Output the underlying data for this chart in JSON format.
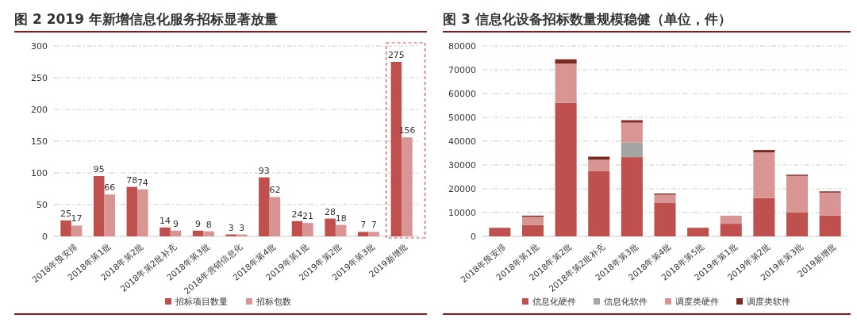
{
  "chart_data": [
    {
      "type": "bar",
      "title": "图 2 2019 年新增信息化服务招标显著放量",
      "categories": [
        "2018年预安排",
        "2018年第1批",
        "2018年第2批",
        "2018年第2批补充",
        "2018年第3批",
        "2018年营销信息化",
        "2018年第4批",
        "2019年第1批",
        "2019年第2批",
        "2019年第3批",
        "2019新增批"
      ],
      "series": [
        {
          "name": "招标项目数量",
          "color": "#c0504d",
          "values": [
            25,
            95,
            78,
            14,
            9,
            3,
            93,
            24,
            28,
            7,
            275
          ]
        },
        {
          "name": "招标包数",
          "color": "#d99594",
          "values": [
            17,
            66,
            74,
            9,
            8,
            3,
            62,
            21,
            18,
            7,
            156
          ]
        }
      ],
      "ylim": [
        0,
        300
      ],
      "yticks": [
        0,
        50,
        100,
        150,
        200,
        250,
        300
      ],
      "grid": "y",
      "legend": "bottom",
      "data_labels": true
    },
    {
      "type": "bar",
      "title": "图 3 信息化设备招标数量规模稳健（单位，件）",
      "stacked": true,
      "categories": [
        "2018年预安排",
        "2018年第1批",
        "2018年第2批",
        "2018年第2批补充",
        "2018年第3批",
        "2018年第4批",
        "2018年第5批",
        "2019年第1批",
        "2019年第2批",
        "2019年第3批",
        "2019新增批"
      ],
      "series": [
        {
          "name": "信息化硬件",
          "color": "#c0504d",
          "values": [
            3600,
            4700,
            56100,
            27400,
            33300,
            14000,
            3600,
            5300,
            16100,
            10100,
            8800
          ]
        },
        {
          "name": "信息化软件",
          "color": "#a5a5a5",
          "values": [
            0,
            0,
            0,
            0,
            6200,
            0,
            0,
            0,
            0,
            0,
            0
          ]
        },
        {
          "name": "调度类硬件",
          "color": "#d99594",
          "values": [
            0,
            3500,
            16500,
            4800,
            8300,
            3500,
            0,
            3400,
            19200,
            15300,
            9600
          ]
        },
        {
          "name": "调度类软件",
          "color": "#7b2a22",
          "values": [
            0,
            500,
            1800,
            1300,
            1000,
            500,
            0,
            0,
            1000,
            500,
            500
          ]
        }
      ],
      "ylim": [
        0,
        80000
      ],
      "yticks": [
        0,
        10000,
        20000,
        30000,
        40000,
        50000,
        60000,
        70000,
        80000
      ],
      "grid": "y",
      "legend": "bottom"
    }
  ]
}
